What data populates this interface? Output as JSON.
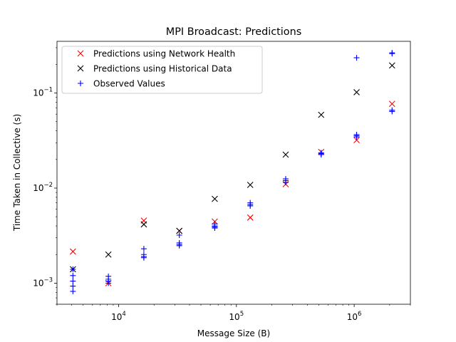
{
  "chart_data": {
    "type": "scatter",
    "title": "MPI Broadcast: Predictions",
    "xlabel": "Message Size (B)",
    "ylabel": "Time Taken in Collective (s)",
    "xscale": "log",
    "yscale": "log",
    "xlim": [
      3000,
      3000000
    ],
    "ylim": [
      0.0006,
      0.35
    ],
    "x_ticks": [
      {
        "value": 10000,
        "base": "10",
        "exp": "4"
      },
      {
        "value": 100000,
        "base": "10",
        "exp": "5"
      },
      {
        "value": 1000000,
        "base": "10",
        "exp": "6"
      }
    ],
    "y_ticks": [
      {
        "value": 0.001,
        "base": "10",
        "exp": "−3"
      },
      {
        "value": 0.01,
        "base": "10",
        "exp": "−2"
      },
      {
        "value": 0.1,
        "base": "10",
        "exp": "−1"
      }
    ],
    "grid": false,
    "legend_position": "top-left",
    "series": [
      {
        "name": "Predictions using Network Health",
        "color": "#ff0000",
        "marker": "x",
        "points": [
          [
            4096,
            0.00215
          ],
          [
            8192,
            0.001
          ],
          [
            16384,
            0.00455
          ],
          [
            32768,
            0.00355
          ],
          [
            65536,
            0.00445
          ],
          [
            131072,
            0.0049
          ],
          [
            262144,
            0.011
          ],
          [
            524288,
            0.024
          ],
          [
            1048576,
            0.032
          ],
          [
            2097152,
            0.077
          ]
        ]
      },
      {
        "name": "Predictions using Historical Data",
        "color": "#000000",
        "marker": "x",
        "points": [
          [
            4096,
            0.0014
          ],
          [
            8192,
            0.002
          ],
          [
            16384,
            0.00415
          ],
          [
            32768,
            0.00355
          ],
          [
            65536,
            0.0077
          ],
          [
            131072,
            0.0108
          ],
          [
            262144,
            0.0225
          ],
          [
            524288,
            0.059
          ],
          [
            1048576,
            0.102
          ],
          [
            2097152,
            0.195
          ]
        ]
      },
      {
        "name": "Observed Values",
        "color": "#0000ff",
        "marker": "+",
        "points": [
          [
            4096,
            0.0014
          ],
          [
            4096,
            0.0012
          ],
          [
            4096,
            0.00105
          ],
          [
            4096,
            0.00093
          ],
          [
            4096,
            0.00082
          ],
          [
            8192,
            0.00118
          ],
          [
            8192,
            0.0011
          ],
          [
            8192,
            0.00105
          ],
          [
            8192,
            0.001
          ],
          [
            16384,
            0.0023
          ],
          [
            16384,
            0.002
          ],
          [
            16384,
            0.0019
          ],
          [
            16384,
            0.00185
          ],
          [
            32768,
            0.0032
          ],
          [
            32768,
            0.00265
          ],
          [
            32768,
            0.00255
          ],
          [
            32768,
            0.00248
          ],
          [
            65536,
            0.0042
          ],
          [
            65536,
            0.004
          ],
          [
            65536,
            0.0039
          ],
          [
            65536,
            0.0038
          ],
          [
            131072,
            0.007
          ],
          [
            131072,
            0.0067
          ],
          [
            131072,
            0.0065
          ],
          [
            262144,
            0.0125
          ],
          [
            262144,
            0.012
          ],
          [
            262144,
            0.0115
          ],
          [
            524288,
            0.0235
          ],
          [
            524288,
            0.023
          ],
          [
            524288,
            0.0225
          ],
          [
            1048576,
            0.235
          ],
          [
            1048576,
            0.0365
          ],
          [
            1048576,
            0.0355
          ],
          [
            1048576,
            0.0345
          ],
          [
            2097152,
            0.265
          ],
          [
            2097152,
            0.26
          ],
          [
            2097152,
            0.066
          ],
          [
            2097152,
            0.064
          ]
        ]
      }
    ]
  }
}
